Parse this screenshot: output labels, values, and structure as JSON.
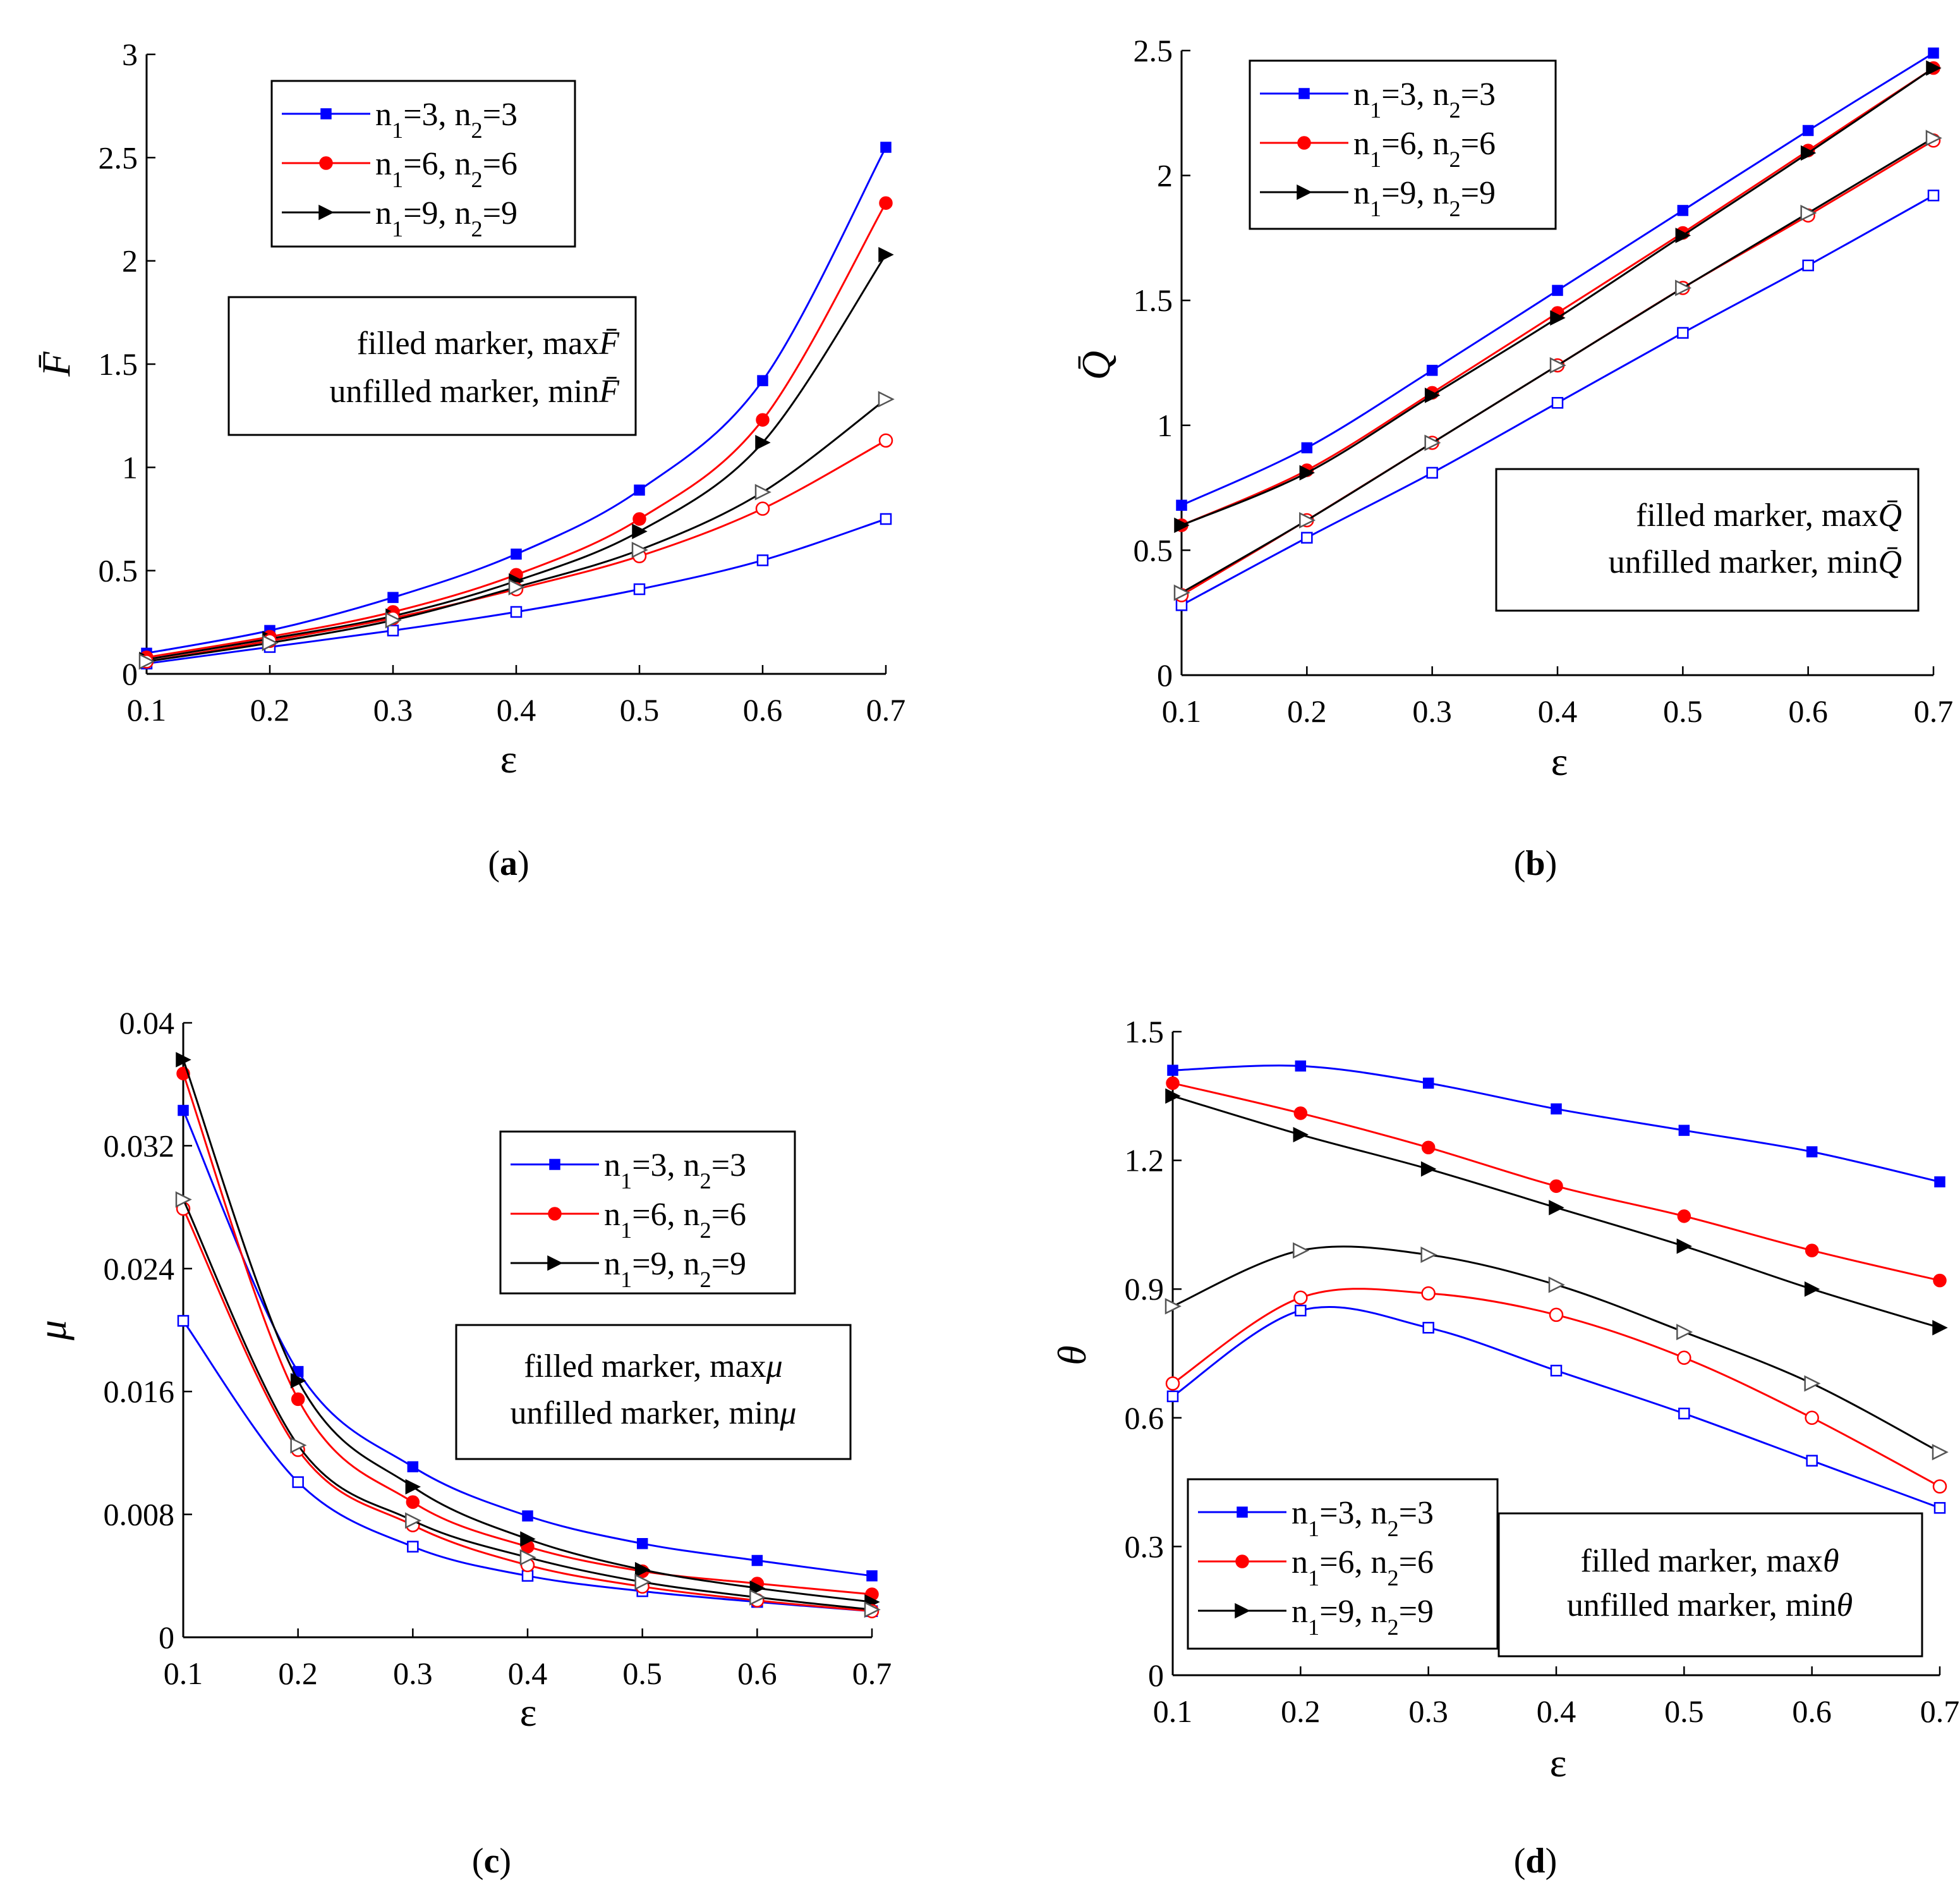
{
  "figure": {
    "marker_note": {
      "filled_prefix": "filled marker, max",
      "unfilled_prefix": "unfilled marker, min"
    }
  },
  "chart_data": [
    {
      "panel": "a",
      "caption": "(a)",
      "type": "line",
      "xlabel": "ε",
      "ylabel": "F̄",
      "x": [
        0.1,
        0.2,
        0.3,
        0.4,
        0.5,
        0.6,
        0.7
      ],
      "xlim": [
        0.1,
        0.7
      ],
      "ylim": [
        0,
        3
      ],
      "xticks": [
        "0.1",
        "0.2",
        "0.3",
        "0.4",
        "0.5",
        "0.6",
        "0.7"
      ],
      "yticks": [
        "0",
        "0.5",
        "1",
        "1.5",
        "2",
        "2.5",
        "3"
      ],
      "ytick_values": [
        0,
        0.5,
        1,
        1.5,
        2,
        2.5,
        3
      ],
      "legend": [
        "n1=3, n2=3",
        "n1=6, n2=6",
        "n1=9, n2=9"
      ],
      "note_symbol": "F̄",
      "series": [
        {
          "name": "n1=3, n2=3",
          "stat": "max",
          "color": "#0000ff",
          "marker": "square",
          "filled": true,
          "values": [
            0.1,
            0.21,
            0.37,
            0.58,
            0.89,
            1.42,
            2.55
          ]
        },
        {
          "name": "n1=6, n2=6",
          "stat": "max",
          "color": "#ff0000",
          "marker": "circle",
          "filled": true,
          "values": [
            0.08,
            0.18,
            0.3,
            0.48,
            0.75,
            1.23,
            2.28
          ]
        },
        {
          "name": "n1=9, n2=9",
          "stat": "max",
          "color": "#000000",
          "marker": "triangle",
          "filled": true,
          "values": [
            0.07,
            0.17,
            0.28,
            0.45,
            0.69,
            1.12,
            2.03
          ]
        },
        {
          "name": "n1=3, n2=3",
          "stat": "min",
          "color": "#0000ff",
          "marker": "square",
          "filled": false,
          "values": [
            0.05,
            0.13,
            0.21,
            0.3,
            0.41,
            0.55,
            0.75
          ]
        },
        {
          "name": "n1=6, n2=6",
          "stat": "min",
          "color": "#ff0000",
          "marker": "circle",
          "filled": false,
          "values": [
            0.06,
            0.16,
            0.27,
            0.41,
            0.57,
            0.8,
            1.13
          ]
        },
        {
          "name": "n1=9, n2=9",
          "stat": "min",
          "color": "#000000",
          "marker": "triangle",
          "filled": false,
          "values": [
            0.06,
            0.15,
            0.26,
            0.42,
            0.6,
            0.88,
            1.33
          ]
        }
      ]
    },
    {
      "panel": "b",
      "caption": "(b)",
      "type": "line",
      "xlabel": "ε",
      "ylabel": "Q̄",
      "x": [
        0.1,
        0.2,
        0.3,
        0.4,
        0.5,
        0.6,
        0.7
      ],
      "xlim": [
        0.1,
        0.7
      ],
      "ylim": [
        0,
        2.5
      ],
      "xticks": [
        "0.1",
        "0.2",
        "0.3",
        "0.4",
        "0.5",
        "0.6",
        "0.7"
      ],
      "yticks": [
        "0",
        "0.5",
        "1",
        "1.5",
        "2",
        "2.5"
      ],
      "ytick_values": [
        0,
        0.5,
        1,
        1.5,
        2,
        2.5
      ],
      "legend": [
        "n1=3, n2=3",
        "n1=6, n2=6",
        "n1=9, n2=9"
      ],
      "note_symbol": "Q̄",
      "series": [
        {
          "name": "n1=3, n2=3",
          "stat": "max",
          "color": "#0000ff",
          "marker": "square",
          "filled": true,
          "values": [
            0.68,
            0.91,
            1.22,
            1.54,
            1.86,
            2.18,
            2.49
          ]
        },
        {
          "name": "n1=6, n2=6",
          "stat": "max",
          "color": "#ff0000",
          "marker": "circle",
          "filled": true,
          "values": [
            0.6,
            0.82,
            1.13,
            1.45,
            1.77,
            2.1,
            2.43
          ]
        },
        {
          "name": "n1=9, n2=9",
          "stat": "max",
          "color": "#000000",
          "marker": "triangle",
          "filled": true,
          "values": [
            0.6,
            0.81,
            1.12,
            1.43,
            1.76,
            2.09,
            2.43
          ]
        },
        {
          "name": "n1=3, n2=3",
          "stat": "min",
          "color": "#0000ff",
          "marker": "square",
          "filled": false,
          "values": [
            0.28,
            0.55,
            0.81,
            1.09,
            1.37,
            1.64,
            1.92
          ]
        },
        {
          "name": "n1=6, n2=6",
          "stat": "min",
          "color": "#ff0000",
          "marker": "circle",
          "filled": false,
          "values": [
            0.32,
            0.62,
            0.93,
            1.24,
            1.55,
            1.84,
            2.14
          ]
        },
        {
          "name": "n1=9, n2=9",
          "stat": "min",
          "color": "#000000",
          "marker": "triangle",
          "filled": false,
          "values": [
            0.33,
            0.62,
            0.93,
            1.24,
            1.55,
            1.85,
            2.15
          ]
        }
      ]
    },
    {
      "panel": "c",
      "caption": "(c)",
      "type": "line",
      "xlabel": "ε",
      "ylabel": "μ",
      "x": [
        0.1,
        0.2,
        0.3,
        0.4,
        0.5,
        0.6,
        0.7
      ],
      "xlim": [
        0.1,
        0.7
      ],
      "ylim": [
        0,
        0.04
      ],
      "xticks": [
        "0.1",
        "0.2",
        "0.3",
        "0.4",
        "0.5",
        "0.6",
        "0.7"
      ],
      "yticks": [
        "0",
        "0.008",
        "0.016",
        "0.024",
        "0.032",
        "0.04"
      ],
      "ytick_values": [
        0,
        0.008,
        0.016,
        0.024,
        0.032,
        0.04
      ],
      "legend": [
        "n1=3, n2=3",
        "n1=6, n2=6",
        "n1=9, n2=9"
      ],
      "note_symbol": "μ",
      "series": [
        {
          "name": "n1=3, n2=3",
          "stat": "max",
          "color": "#0000ff",
          "marker": "square",
          "filled": true,
          "values": [
            0.0343,
            0.0173,
            0.0111,
            0.0079,
            0.0061,
            0.005,
            0.004
          ]
        },
        {
          "name": "n1=6, n2=6",
          "stat": "max",
          "color": "#ff0000",
          "marker": "circle",
          "filled": true,
          "values": [
            0.0367,
            0.0155,
            0.0088,
            0.0059,
            0.0043,
            0.0035,
            0.0028
          ]
        },
        {
          "name": "n1=9, n2=9",
          "stat": "max",
          "color": "#000000",
          "marker": "triangle",
          "filled": true,
          "values": [
            0.0376,
            0.0167,
            0.0098,
            0.0064,
            0.0044,
            0.0032,
            0.0023
          ]
        },
        {
          "name": "n1=3, n2=3",
          "stat": "min",
          "color": "#0000ff",
          "marker": "square",
          "filled": false,
          "values": [
            0.0206,
            0.0101,
            0.0059,
            0.004,
            0.003,
            0.0023,
            0.0017
          ]
        },
        {
          "name": "n1=6, n2=6",
          "stat": "min",
          "color": "#ff0000",
          "marker": "circle",
          "filled": false,
          "values": [
            0.0279,
            0.0122,
            0.0073,
            0.0047,
            0.0033,
            0.0024,
            0.0017
          ]
        },
        {
          "name": "n1=9, n2=9",
          "stat": "min",
          "color": "#000000",
          "marker": "triangle",
          "filled": false,
          "values": [
            0.0285,
            0.0125,
            0.0076,
            0.0052,
            0.0036,
            0.0026,
            0.0018
          ]
        }
      ]
    },
    {
      "panel": "d",
      "caption": "(d)",
      "type": "line",
      "xlabel": "ε",
      "ylabel": "θ",
      "x": [
        0.1,
        0.2,
        0.3,
        0.4,
        0.5,
        0.6,
        0.7
      ],
      "xlim": [
        0.1,
        0.7
      ],
      "ylim": [
        0,
        1.5
      ],
      "xticks": [
        "0.1",
        "0.2",
        "0.3",
        "0.4",
        "0.5",
        "0.6",
        "0.7"
      ],
      "yticks": [
        "0",
        "0.3",
        "0.6",
        "0.9",
        "1.2",
        "1.5"
      ],
      "ytick_values": [
        0,
        0.3,
        0.6,
        0.9,
        1.2,
        1.5
      ],
      "legend": [
        "n1=3, n2=3",
        "n1=6, n2=6",
        "n1=9, n2=9"
      ],
      "note_symbol": "θ",
      "series": [
        {
          "name": "n1=3, n2=3",
          "stat": "max",
          "color": "#0000ff",
          "marker": "square",
          "filled": true,
          "values": [
            1.41,
            1.42,
            1.38,
            1.32,
            1.27,
            1.22,
            1.15
          ]
        },
        {
          "name": "n1=6, n2=6",
          "stat": "max",
          "color": "#ff0000",
          "marker": "circle",
          "filled": true,
          "values": [
            1.38,
            1.31,
            1.23,
            1.14,
            1.07,
            0.99,
            0.92
          ]
        },
        {
          "name": "n1=9, n2=9",
          "stat": "max",
          "color": "#000000",
          "marker": "triangle",
          "filled": true,
          "values": [
            1.35,
            1.26,
            1.18,
            1.09,
            1.0,
            0.9,
            0.81
          ]
        },
        {
          "name": "n1=3, n2=3",
          "stat": "min",
          "color": "#0000ff",
          "marker": "square",
          "filled": false,
          "values": [
            0.65,
            0.85,
            0.81,
            0.71,
            0.61,
            0.5,
            0.39
          ]
        },
        {
          "name": "n1=6, n2=6",
          "stat": "min",
          "color": "#ff0000",
          "marker": "circle",
          "filled": false,
          "values": [
            0.68,
            0.88,
            0.89,
            0.84,
            0.74,
            0.6,
            0.44
          ]
        },
        {
          "name": "n1=9, n2=9",
          "stat": "min",
          "color": "#000000",
          "marker": "triangle",
          "filled": false,
          "values": [
            0.86,
            0.99,
            0.98,
            0.91,
            0.8,
            0.68,
            0.52
          ]
        }
      ]
    }
  ]
}
